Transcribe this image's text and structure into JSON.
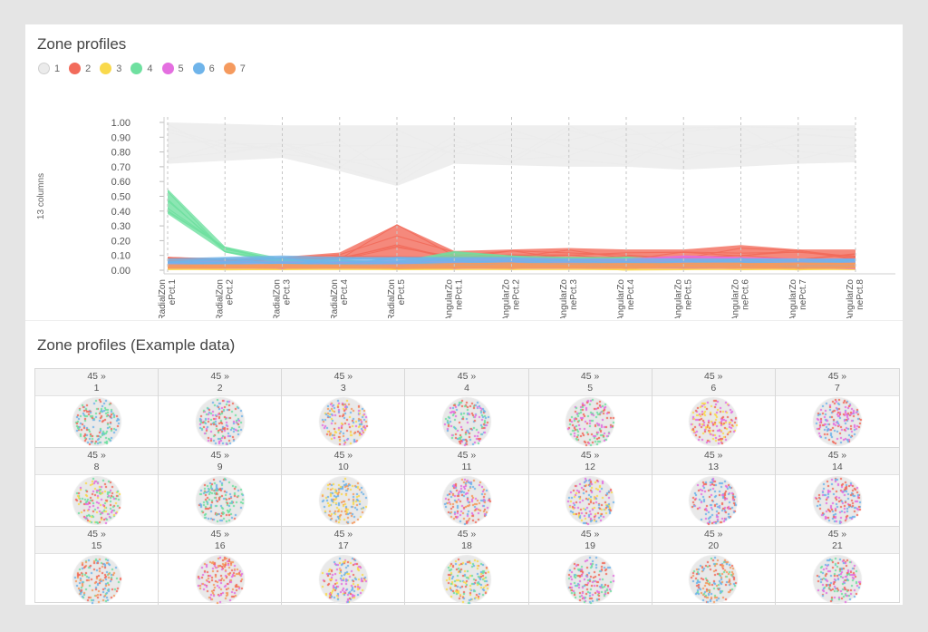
{
  "panels": {
    "profiles_title": "Zone profiles",
    "example_title": "Zone profiles (Example data)"
  },
  "legend": [
    {
      "label": "1",
      "color": "#ebebeb"
    },
    {
      "label": "2",
      "color": "#f26b5b"
    },
    {
      "label": "3",
      "color": "#f9d94c"
    },
    {
      "label": "4",
      "color": "#6fe0a0"
    },
    {
      "label": "5",
      "color": "#e46fe0"
    },
    {
      "label": "6",
      "color": "#6fb4ea"
    },
    {
      "label": "7",
      "color": "#f59a5e"
    }
  ],
  "chart_data": {
    "type": "line",
    "title": "Zone profiles",
    "ylabel": "13 columns",
    "xlabel": "",
    "ylim": [
      0,
      1.0
    ],
    "yticks": [
      "1.00",
      "0.90",
      "0.80",
      "0.70",
      "0.60",
      "0.50",
      "0.40",
      "0.30",
      "0.20",
      "0.10",
      "0.00"
    ],
    "categories": [
      "RadialZonePct.1",
      "RadialZonePct.2",
      "RadialZonePct.3",
      "RadialZonePct.4",
      "RadialZonePct.5",
      "AngularZonePct.1",
      "AngularZonePct.2",
      "AngularZonePct.3",
      "AngularZonePct.4",
      "AngularZonePct.5",
      "AngularZonePct.6",
      "AngularZonePct.7",
      "AngularZonePct.8"
    ],
    "category_labels": [
      [
        "RadialZon",
        "ePct.1"
      ],
      [
        "RadialZon",
        "ePct.2"
      ],
      [
        "RadialZon",
        "ePct.3"
      ],
      [
        "RadialZon",
        "ePct.4"
      ],
      [
        "RadialZon",
        "ePct.5"
      ],
      [
        "AngularZo",
        "nePct.1"
      ],
      [
        "AngularZo",
        "nePct.2"
      ],
      [
        "AngularZo",
        "nePct.3"
      ],
      [
        "AngularZo",
        "nePct.4"
      ],
      [
        "AngularZo",
        "nePct.5"
      ],
      [
        "AngularZo",
        "nePct.6"
      ],
      [
        "AngularZo",
        "nePct.7"
      ],
      [
        "AngularZo",
        "nePct.8"
      ]
    ],
    "series": [
      {
        "name": "1",
        "color": "#ebebeb",
        "low": [
          0.72,
          0.74,
          0.76,
          0.67,
          0.57,
          0.72,
          0.71,
          0.7,
          0.7,
          0.68,
          0.7,
          0.72,
          0.73
        ],
        "high": [
          1.0,
          0.99,
          0.98,
          0.98,
          0.98,
          0.98,
          0.98,
          0.98,
          0.98,
          0.98,
          0.98,
          0.98,
          0.98
        ]
      },
      {
        "name": "2",
        "color": "#f26b5b",
        "low": [
          0.05,
          0.05,
          0.06,
          0.07,
          0.08,
          0.07,
          0.07,
          0.07,
          0.07,
          0.07,
          0.07,
          0.07,
          0.07
        ],
        "high": [
          0.09,
          0.08,
          0.09,
          0.12,
          0.31,
          0.13,
          0.14,
          0.15,
          0.14,
          0.14,
          0.17,
          0.14,
          0.14
        ]
      },
      {
        "name": "3",
        "color": "#f9d94c",
        "low": [
          0.0,
          0.0,
          0.0,
          0.0,
          0.0,
          0.0,
          0.0,
          0.0,
          0.0,
          0.0,
          0.0,
          0.0,
          0.0
        ],
        "high": [
          0.03,
          0.03,
          0.03,
          0.03,
          0.03,
          0.05,
          0.05,
          0.05,
          0.05,
          0.05,
          0.05,
          0.05,
          0.05
        ]
      },
      {
        "name": "4",
        "color": "#6fe0a0",
        "low": [
          0.38,
          0.12,
          0.04,
          0.04,
          0.03,
          0.03,
          0.03,
          0.03,
          0.03,
          0.03,
          0.03,
          0.03,
          0.03
        ],
        "high": [
          0.55,
          0.16,
          0.08,
          0.07,
          0.06,
          0.13,
          0.1,
          0.09,
          0.09,
          0.08,
          0.08,
          0.08,
          0.07
        ]
      },
      {
        "name": "5",
        "color": "#e46fe0",
        "low": [
          0.01,
          0.01,
          0.01,
          0.01,
          0.01,
          0.01,
          0.01,
          0.01,
          0.01,
          0.01,
          0.01,
          0.01,
          0.01
        ],
        "high": [
          0.06,
          0.06,
          0.06,
          0.06,
          0.07,
          0.08,
          0.08,
          0.08,
          0.08,
          0.1,
          0.09,
          0.08,
          0.08
        ]
      },
      {
        "name": "6",
        "color": "#6fb4ea",
        "low": [
          0.03,
          0.03,
          0.03,
          0.03,
          0.03,
          0.02,
          0.02,
          0.02,
          0.02,
          0.02,
          0.02,
          0.02,
          0.02
        ],
        "high": [
          0.08,
          0.09,
          0.1,
          0.09,
          0.09,
          0.09,
          0.09,
          0.08,
          0.08,
          0.08,
          0.08,
          0.08,
          0.08
        ]
      },
      {
        "name": "7",
        "color": "#f59a5e",
        "low": [
          0.01,
          0.01,
          0.01,
          0.01,
          0.01,
          0.01,
          0.01,
          0.01,
          0.01,
          0.01,
          0.01,
          0.01,
          0.01
        ],
        "high": [
          0.04,
          0.04,
          0.04,
          0.04,
          0.04,
          0.05,
          0.05,
          0.05,
          0.05,
          0.05,
          0.05,
          0.05,
          0.05
        ]
      }
    ]
  },
  "tiles": [
    {
      "count": "45 »",
      "label": "1",
      "base": "#e9e9e9",
      "dots": [
        "#6fb4ea",
        "#f26b5b",
        "#6fe0a0"
      ]
    },
    {
      "count": "45 »",
      "label": "2",
      "base": "#e9e9e9",
      "dots": [
        "#6fb4ea",
        "#f26b5b",
        "#e46fe0",
        "#6fe0a0"
      ]
    },
    {
      "count": "45 »",
      "label": "3",
      "base": "#e9e9e9",
      "dots": [
        "#f26b5b",
        "#6fb4ea",
        "#f9d94c",
        "#e46fe0",
        "#f59a5e"
      ]
    },
    {
      "count": "45 »",
      "label": "4",
      "base": "#e9e9e9",
      "dots": [
        "#6fb4ea",
        "#e46fe0",
        "#f26b5b",
        "#6fe0a0"
      ]
    },
    {
      "count": "45 »",
      "label": "5",
      "base": "#e9e9e9",
      "dots": [
        "#6fe0a0",
        "#f26b5b",
        "#e46fe0"
      ]
    },
    {
      "count": "45 »",
      "label": "6",
      "base": "#e9e9e9",
      "dots": [
        "#e46fe0",
        "#f26b5b",
        "#f9d94c"
      ]
    },
    {
      "count": "45 »",
      "label": "7",
      "base": "#e9e9e9",
      "dots": [
        "#f26b5b",
        "#e46fe0",
        "#6fb4ea"
      ]
    },
    {
      "count": "45 »",
      "label": "8",
      "base": "#e9e9e9",
      "dots": [
        "#e46fe0",
        "#f26b5b",
        "#6fe0a0",
        "#f9d94c"
      ]
    },
    {
      "count": "45 »",
      "label": "9",
      "base": "#e9e9e9",
      "dots": [
        "#6fe0a0",
        "#6fb4ea",
        "#f26b5b"
      ]
    },
    {
      "count": "45 »",
      "label": "10",
      "base": "#e9e9e9",
      "dots": [
        "#f9d94c",
        "#6fb4ea",
        "#f59a5e"
      ]
    },
    {
      "count": "45 »",
      "label": "11",
      "base": "#e9e9e9",
      "dots": [
        "#f26b5b",
        "#6fb4ea",
        "#e46fe0",
        "#f59a5e"
      ]
    },
    {
      "count": "45 »",
      "label": "12",
      "base": "#e9e9e9",
      "dots": [
        "#e46fe0",
        "#6fb4ea",
        "#f26b5b",
        "#f9d94c"
      ]
    },
    {
      "count": "45 »",
      "label": "13",
      "base": "#e9e9e9",
      "dots": [
        "#f26b5b",
        "#e46fe0",
        "#6fb4ea"
      ]
    },
    {
      "count": "45 »",
      "label": "14",
      "base": "#e9e9e9",
      "dots": [
        "#f26b5b",
        "#6fb4ea",
        "#e46fe0"
      ]
    },
    {
      "count": "45 »",
      "label": "15",
      "base": "#e9e9e9",
      "dots": [
        "#6fe0a0",
        "#f26b5b",
        "#f59a5e",
        "#6fb4ea"
      ]
    },
    {
      "count": "45 »",
      "label": "16",
      "base": "#e9e9e9",
      "dots": [
        "#f26b5b",
        "#e46fe0",
        "#f59a5e"
      ]
    },
    {
      "count": "45 »",
      "label": "17",
      "base": "#e9e9e9",
      "dots": [
        "#6fb4ea",
        "#e46fe0",
        "#f26b5b",
        "#f9d94c"
      ]
    },
    {
      "count": "45 »",
      "label": "18",
      "base": "#e9e9e9",
      "dots": [
        "#6fe0a0",
        "#f9d94c",
        "#f26b5b",
        "#6fb4ea"
      ]
    },
    {
      "count": "45 »",
      "label": "19",
      "base": "#e9e9e9",
      "dots": [
        "#6fb4ea",
        "#6fe0a0",
        "#e46fe0",
        "#f26b5b"
      ]
    },
    {
      "count": "45 »",
      "label": "20",
      "base": "#e9e9e9",
      "dots": [
        "#f26b5b",
        "#f59a5e",
        "#6fb4ea",
        "#6fe0a0"
      ]
    },
    {
      "count": "45 »",
      "label": "21",
      "base": "#e9e9e9",
      "dots": [
        "#6fe0a0",
        "#f26b5b",
        "#e46fe0",
        "#6fb4ea"
      ]
    }
  ]
}
